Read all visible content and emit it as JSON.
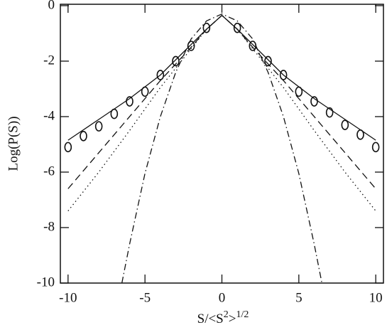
{
  "chart_data": {
    "type": "line",
    "ylabel": "Log(P(S))",
    "xlabel": [
      "S/<S",
      "2",
      ">",
      "1/2"
    ],
    "xlim": [
      -10.5,
      10.5
    ],
    "ylim": [
      -10,
      0.05
    ],
    "xticks": [
      -10,
      -5,
      0,
      5,
      10
    ],
    "yticks": [
      0,
      -2,
      -4,
      -6,
      -8,
      -10
    ],
    "series": [
      {
        "style": "marker",
        "color": "#111111",
        "x": [
          -10,
          -9,
          -8,
          -7,
          -6,
          -5,
          -4,
          -3,
          -2,
          -1,
          1,
          2,
          3,
          4,
          5,
          6,
          7,
          8,
          9,
          10
        ],
        "values": [
          -5.1,
          -4.7,
          -4.35,
          -3.9,
          -3.45,
          -3.1,
          -2.5,
          -2.0,
          -1.45,
          -0.8,
          -0.8,
          -1.45,
          -2.0,
          -2.5,
          -3.1,
          -3.45,
          -3.85,
          -4.3,
          -4.65,
          -5.1
        ]
      },
      {
        "style": "solid",
        "color": "#111111",
        "x": [
          -10,
          -8,
          -6,
          -4,
          -2,
          -1,
          0,
          1,
          2,
          4,
          6,
          8,
          10
        ],
        "values": [
          -4.85,
          -4.1,
          -3.35,
          -2.5,
          -1.4,
          -0.85,
          -0.35,
          -0.85,
          -1.4,
          -2.5,
          -3.35,
          -4.1,
          -4.85
        ]
      },
      {
        "style": "dashed",
        "color": "#111111",
        "x": [
          -10,
          -8,
          -6,
          -4,
          -2,
          -1,
          0,
          1,
          2,
          4,
          6,
          8,
          10
        ],
        "values": [
          -6.6,
          -5.3,
          -4.0,
          -2.7,
          -1.5,
          -0.85,
          -0.35,
          -0.85,
          -1.5,
          -2.7,
          -4.0,
          -5.3,
          -6.6
        ]
      },
      {
        "style": "dotted",
        "color": "#111111",
        "x": [
          -10,
          -8,
          -6,
          -4,
          -2,
          -1,
          0,
          1,
          2,
          4,
          6,
          8,
          10
        ],
        "values": [
          -7.4,
          -6.0,
          -4.5,
          -2.95,
          -1.55,
          -0.85,
          -0.35,
          -0.85,
          -1.55,
          -2.95,
          -4.5,
          -6.0,
          -7.4
        ]
      },
      {
        "style": "dashdot",
        "color": "#111111",
        "x": [
          -6.5,
          -6,
          -5,
          -4,
          -3,
          -2,
          -1,
          0,
          1,
          2,
          3,
          4,
          5,
          6,
          6.5
        ],
        "values": [
          -10,
          -8.6,
          -6.05,
          -4.0,
          -2.4,
          -1.2,
          -0.55,
          -0.3,
          -0.55,
          -1.2,
          -2.4,
          -4.0,
          -6.05,
          -8.6,
          -10
        ]
      }
    ]
  }
}
